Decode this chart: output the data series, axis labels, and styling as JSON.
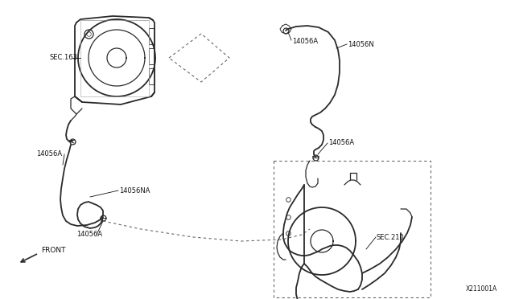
{
  "bg_color": "#ffffff",
  "diagram_id": "X211001A",
  "line_color": "#2a2a2a",
  "dashed_color": "#666666",
  "text_color": "#111111",
  "labels": {
    "sec163": "SEC.163",
    "sec210": "SEC.210",
    "l14056A_1": "14056A",
    "l14056A_2": "14056A",
    "l14056A_3": "14056A",
    "l14056A_4": "14056A",
    "l14056NA": "14056NA",
    "l14056N": "14056N",
    "front": "FRONT"
  },
  "font_size_label": 6.0,
  "font_size_id": 5.5
}
